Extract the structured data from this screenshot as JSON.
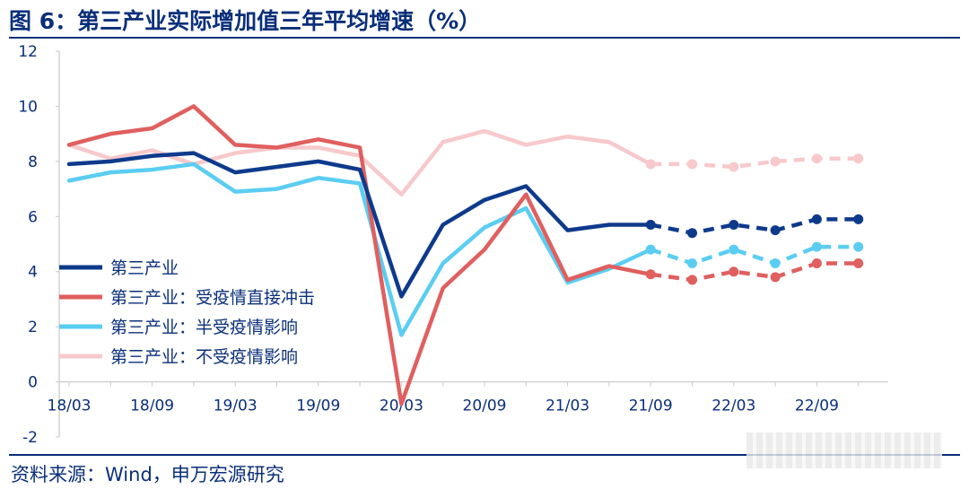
{
  "title": "图 6：第三产业实际增加值三年平均增速（%）",
  "source": "资料来源：Wind，申万宏源研究",
  "chart_data": {
    "type": "line",
    "title": "图 6：第三产业实际增加值三年平均增速（%）",
    "x": [
      "18/03",
      "18/06",
      "18/09",
      "18/12",
      "19/03",
      "19/06",
      "19/09",
      "19/12",
      "20/03",
      "20/06",
      "20/09",
      "20/12",
      "21/03",
      "21/06",
      "21/09",
      "21/12",
      "22/03",
      "22/06",
      "22/09",
      "22/12"
    ],
    "x_tick_labels": [
      "18/03",
      "18/09",
      "19/03",
      "19/09",
      "20/03",
      "20/09",
      "21/03",
      "21/09",
      "22/03",
      "22/09"
    ],
    "ylim": [
      -2,
      12
    ],
    "y_ticks": [
      -2,
      0,
      2,
      4,
      6,
      8,
      10,
      12
    ],
    "xlabel": "",
    "ylabel": "",
    "grid": false,
    "legend_position": "bottom-left",
    "forecast_start_index": 14,
    "series": [
      {
        "name": "第三产业",
        "color": "#0e3a8c",
        "values": [
          7.9,
          8.0,
          8.2,
          8.3,
          7.6,
          7.8,
          8.0,
          7.7,
          3.1,
          5.7,
          6.6,
          7.1,
          5.5,
          5.7,
          5.7,
          5.4,
          5.7,
          5.5,
          5.9,
          5.9
        ]
      },
      {
        "name": "第三产业：受疫情直接冲击",
        "color": "#e05f5f",
        "values": [
          8.6,
          9.0,
          9.2,
          10.0,
          8.6,
          8.5,
          8.8,
          8.5,
          -0.8,
          3.4,
          4.8,
          6.8,
          3.7,
          4.2,
          3.9,
          3.7,
          4.0,
          3.8,
          4.3,
          4.3
        ]
      },
      {
        "name": "第三产业：半受疫情影响",
        "color": "#5bcdf2",
        "values": [
          7.3,
          7.6,
          7.7,
          7.9,
          6.9,
          7.0,
          7.4,
          7.2,
          1.7,
          4.3,
          5.6,
          6.3,
          3.6,
          4.1,
          4.8,
          4.3,
          4.8,
          4.3,
          4.9,
          4.9
        ]
      },
      {
        "name": "第三产业：不受疫情影响",
        "color": "#f7c9cb",
        "values": [
          8.6,
          8.1,
          8.4,
          7.9,
          8.3,
          8.5,
          8.5,
          8.2,
          6.8,
          8.7,
          9.1,
          8.6,
          8.9,
          8.7,
          7.9,
          7.9,
          7.8,
          8.0,
          8.1,
          8.1
        ]
      }
    ]
  }
}
